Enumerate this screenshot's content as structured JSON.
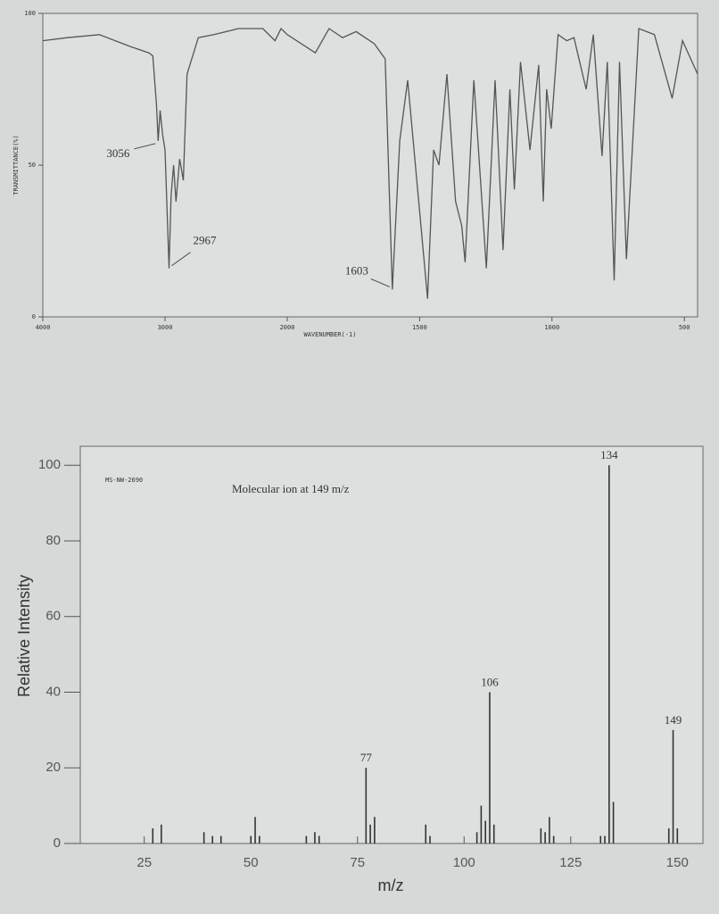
{
  "chart_data": [
    {
      "type": "line",
      "color": "#555",
      "y_label": "TRANSMITTANCE(%)",
      "x_label": "WAVENUMBER(-1)",
      "xlim": [
        4000,
        450
      ],
      "x_scale_change": 2000,
      "xticks": [
        4000,
        3000,
        2000,
        1500,
        1000,
        500
      ],
      "ylim": [
        0,
        100
      ],
      "yticks": [
        0,
        50,
        100
      ],
      "annotations": [
        3056,
        2967,
        1603
      ],
      "x": [
        4000,
        3800,
        3537,
        3279,
        3132,
        3100,
        3070,
        3056,
        3040,
        3020,
        3000,
        2967,
        2950,
        2930,
        2910,
        2880,
        2850,
        2820,
        2728,
        2600,
        2400,
        2200,
        2100,
        2050,
        2000,
        1894,
        1842,
        1791,
        1740,
        1671,
        1630,
        1603,
        1575,
        1545,
        1470,
        1447,
        1427,
        1397,
        1364,
        1341,
        1328,
        1295,
        1248,
        1215,
        1185,
        1159,
        1142,
        1119,
        1083,
        1050,
        1033,
        1020,
        1003,
        977,
        944,
        917,
        871,
        844,
        811,
        791,
        765,
        745,
        719,
        672,
        613,
        546,
        507,
        450
      ],
      "values": [
        91,
        92,
        93,
        89,
        87,
        86,
        70,
        58,
        68,
        60,
        55,
        16,
        40,
        50,
        38,
        52,
        45,
        80,
        92,
        93,
        95,
        95,
        91,
        95,
        93,
        87,
        95,
        92,
        94,
        90,
        85,
        9,
        58,
        78,
        6,
        55,
        50,
        80,
        38,
        30,
        18,
        78,
        16,
        78,
        22,
        75,
        42,
        84,
        55,
        83,
        38,
        75,
        62,
        93,
        91,
        92,
        75,
        93,
        53,
        84,
        12,
        84,
        19,
        95,
        93,
        72,
        91,
        80
      ]
    },
    {
      "type": "bar",
      "color": "#333",
      "code": "MS-NW-2690",
      "note": "Molecular ion at 149 m/z",
      "y_label": "Relative Intensity",
      "x_label": "m/z",
      "xlim": [
        10,
        156
      ],
      "xticks": [
        25,
        50,
        75,
        100,
        125,
        150
      ],
      "ylim": [
        0,
        105
      ],
      "yticks": [
        0,
        20,
        40,
        60,
        80,
        100
      ],
      "peak_labels": [
        134,
        106,
        77,
        149
      ],
      "x": [
        27,
        29,
        39,
        41,
        43,
        50,
        51,
        52,
        63,
        65,
        66,
        77,
        78,
        79,
        91,
        92,
        103,
        104,
        105,
        106,
        107,
        118,
        119,
        120,
        121,
        132,
        133,
        134,
        135,
        148,
        149,
        150
      ],
      "values": [
        4,
        5,
        3,
        2,
        2,
        2,
        7,
        2,
        2,
        3,
        2,
        20,
        5,
        7,
        5,
        2,
        3,
        10,
        6,
        40,
        5,
        4,
        3,
        7,
        2,
        2,
        2,
        100,
        11,
        4,
        30,
        4
      ]
    }
  ]
}
